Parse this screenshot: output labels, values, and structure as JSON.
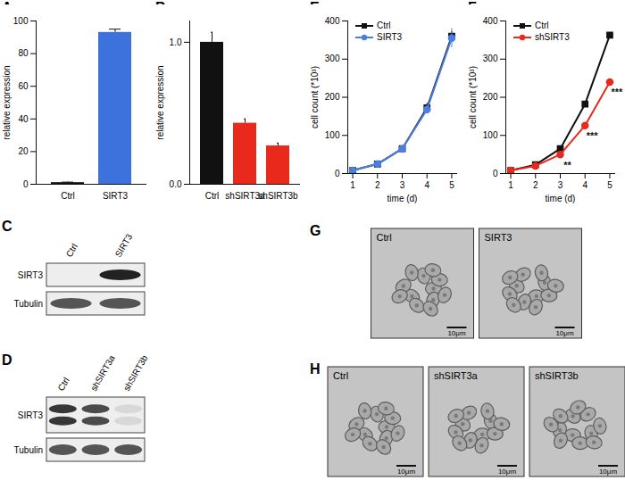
{
  "chart_data": [
    {
      "panel": "A",
      "type": "bar",
      "categories": [
        "Ctrl",
        "SIRT3"
      ],
      "values": [
        1,
        93
      ],
      "errors": [
        0.3,
        2
      ],
      "colors": [
        "#111111",
        "#3d72dc"
      ],
      "ylabel": "relative expression",
      "ylim": [
        0,
        100
      ],
      "yticks": [
        0,
        20,
        40,
        60,
        80,
        100
      ]
    },
    {
      "panel": "B",
      "type": "bar",
      "categories": [
        "Ctrl",
        "shSIRT3a",
        "shSIRT3b"
      ],
      "values": [
        1.0,
        0.43,
        0.27
      ],
      "errors": [
        0.07,
        0.03,
        0.02
      ],
      "colors": [
        "#111111",
        "#e8291c",
        "#e8291c"
      ],
      "ylabel": "relative expression",
      "ylim": [
        0,
        1.15
      ],
      "yticks": [
        0,
        1
      ]
    },
    {
      "panel": "E",
      "type": "line",
      "x": [
        1,
        2,
        3,
        4,
        5
      ],
      "xlabel": "time (d)",
      "ylabel": "cell count (*10³)",
      "xlim": [
        0.8,
        5.2
      ],
      "xticks": [
        1,
        2,
        3,
        4,
        5
      ],
      "ylim": [
        0,
        400
      ],
      "yticks": [
        0,
        100,
        200,
        300,
        400
      ],
      "legend": "top-left",
      "series": [
        {
          "name": "Ctrl",
          "color": "#111111",
          "marker": "square",
          "values": [
            8,
            25,
            65,
            172,
            360
          ],
          "errors": [
            1,
            2,
            3,
            12,
            12
          ]
        },
        {
          "name": "SIRT3",
          "color": "#4a7fe0",
          "marker": "circle",
          "values": [
            8,
            25,
            65,
            168,
            355
          ],
          "errors": [
            1,
            2,
            3,
            10,
            25
          ]
        }
      ]
    },
    {
      "panel": "F",
      "type": "line",
      "x": [
        1,
        2,
        3,
        4,
        5
      ],
      "xlabel": "time (d)",
      "ylabel": "cell count (*10³)",
      "xlim": [
        0.8,
        5.2
      ],
      "xticks": [
        1,
        2,
        3,
        4,
        5
      ],
      "ylim": [
        0,
        400
      ],
      "yticks": [
        0,
        100,
        200,
        300,
        400
      ],
      "legend": "top-left",
      "series": [
        {
          "name": "Ctrl",
          "color": "#111111",
          "marker": "square",
          "values": [
            8,
            23,
            65,
            182,
            363
          ],
          "errors": [
            1,
            1,
            3,
            3,
            3
          ]
        },
        {
          "name": "shSIRT3",
          "color": "#e8291c",
          "marker": "circle",
          "values": [
            8,
            20,
            50,
            126,
            240
          ],
          "errors": [
            1,
            1,
            2,
            3,
            3
          ]
        }
      ],
      "annotations": [
        {
          "series": "shSIRT3",
          "x": 3,
          "text": "**"
        },
        {
          "series": "shSIRT3",
          "x": 4,
          "text": "***"
        },
        {
          "series": "shSIRT3",
          "x": 5,
          "text": "***"
        }
      ]
    }
  ],
  "blots": [
    {
      "panel": "C",
      "lanes": [
        "Ctrl",
        "SIRT3"
      ],
      "rows": [
        {
          "label": "SIRT3",
          "bands": [
            [
              0
            ],
            [
              1
            ]
          ]
        },
        {
          "label": "Tubulin",
          "bands": [
            [
              0.75
            ],
            [
              0.75
            ]
          ]
        }
      ]
    },
    {
      "panel": "D",
      "lanes": [
        "Ctrl",
        "shSIRT3a",
        "shSIRT3b"
      ],
      "rows": [
        {
          "label": "SIRT3",
          "bands": [
            [
              0.9,
              0.9
            ],
            [
              0.8,
              0.8
            ],
            [
              0.1,
              0.1
            ]
          ]
        },
        {
          "label": "Tubulin",
          "bands": [
            [
              0.75
            ],
            [
              0.75
            ],
            [
              0.75
            ]
          ]
        }
      ]
    }
  ],
  "images": [
    {
      "panel": "G",
      "labels": [
        "Ctrl",
        "SIRT3"
      ],
      "scale_bar": "10μm"
    },
    {
      "panel": "H",
      "labels": [
        "Ctrl",
        "shSIRT3a",
        "shSIRT3b"
      ],
      "scale_bar": "10μm"
    }
  ]
}
